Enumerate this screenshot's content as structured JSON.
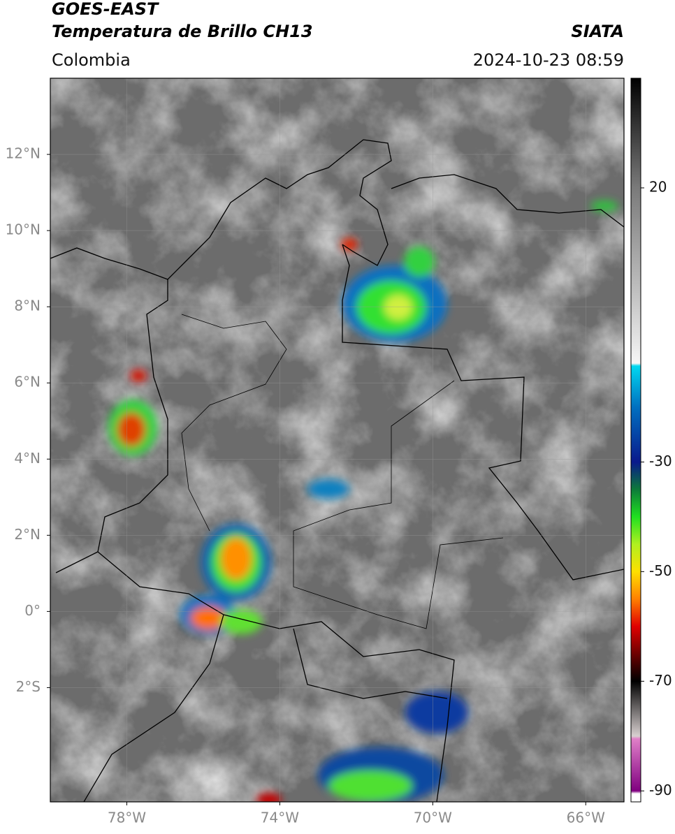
{
  "header": {
    "satellite": "GOES-EAST",
    "product": "Temperatura de Brillo CH13",
    "brand": "SIATA",
    "region": "Colombia",
    "datetime": "2024-10-23 08:59"
  },
  "map": {
    "xlim": [
      -80,
      -65
    ],
    "ylim": [
      -5,
      14
    ],
    "lat_ticks": [
      {
        "value": 12,
        "label": "12°N"
      },
      {
        "value": 10,
        "label": "10°N"
      },
      {
        "value": 8,
        "label": "8°N"
      },
      {
        "value": 6,
        "label": "6°N"
      },
      {
        "value": 4,
        "label": "4°N"
      },
      {
        "value": 2,
        "label": "2°N"
      },
      {
        "value": 0,
        "label": "0°"
      },
      {
        "value": -2,
        "label": "2°S"
      }
    ],
    "lon_ticks": [
      {
        "value": -78,
        "label": "78°W"
      },
      {
        "value": -74,
        "label": "74°W"
      },
      {
        "value": -70,
        "label": "70°W"
      },
      {
        "value": -66,
        "label": "66°W"
      }
    ],
    "grid": true
  },
  "colorbar": {
    "clim": [
      -92,
      40
    ],
    "ticks": [
      20,
      -30,
      -50,
      -70,
      -90
    ],
    "colormap": [
      [
        40,
        "#000000"
      ],
      [
        20,
        "#7a7a7a"
      ],
      [
        0,
        "#c4c4c4"
      ],
      [
        -12,
        "#f6f6f6"
      ],
      [
        -12.5,
        "#00d8f0"
      ],
      [
        -20,
        "#0070c0"
      ],
      [
        -30,
        "#0a1a8c"
      ],
      [
        -35,
        "#0c7a3a"
      ],
      [
        -40,
        "#20e020"
      ],
      [
        -45,
        "#b0f020"
      ],
      [
        -50,
        "#ffe000"
      ],
      [
        -55,
        "#ff8000"
      ],
      [
        -60,
        "#e00000"
      ],
      [
        -67,
        "#400000"
      ],
      [
        -70,
        "#000000"
      ],
      [
        -80,
        "#d8d0d0"
      ],
      [
        -80.5,
        "#e080c8"
      ],
      [
        -90,
        "#800080"
      ],
      [
        -90.5,
        "#ffffff"
      ],
      [
        -92,
        "#ffffff"
      ]
    ]
  }
}
